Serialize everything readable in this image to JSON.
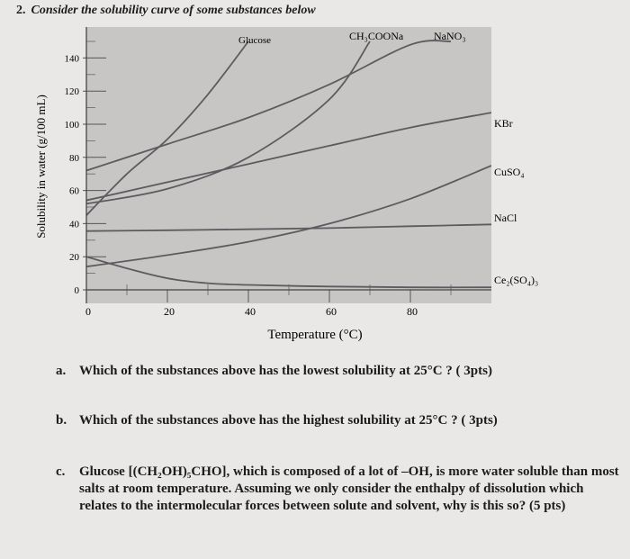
{
  "question": {
    "number": "2.",
    "title": "Consider the solubility curve of some substances below"
  },
  "chart_data": {
    "type": "line",
    "title": "",
    "xlabel": "Temperature (°C)",
    "ylabel": "Solubility in water (g/100 mL)",
    "xlim": [
      0,
      100
    ],
    "ylim": [
      0,
      150
    ],
    "xticks": [
      0,
      20,
      40,
      60,
      80
    ],
    "yticks": [
      0,
      20,
      40,
      60,
      80,
      100,
      120,
      140
    ],
    "grid": false,
    "series": [
      {
        "name": "Glucose",
        "x": [
          0,
          10,
          20,
          30,
          40
        ],
        "y": [
          45,
          70,
          91,
          118,
          150
        ]
      },
      {
        "name": "CH3COONa",
        "x": [
          0,
          20,
          40,
          60,
          70
        ],
        "y": [
          52,
          61,
          80,
          115,
          150
        ]
      },
      {
        "name": "NaNO3",
        "x": [
          0,
          20,
          40,
          60,
          80,
          90
        ],
        "y": [
          72,
          88,
          104,
          124,
          148,
          150
        ]
      },
      {
        "name": "KBr",
        "x": [
          0,
          20,
          40,
          60,
          80,
          100
        ],
        "y": [
          54,
          65,
          76,
          87,
          98,
          107
        ]
      },
      {
        "name": "CuSO4",
        "x": [
          0,
          20,
          40,
          60,
          80,
          100
        ],
        "y": [
          14,
          21,
          29,
          40,
          55,
          75
        ]
      },
      {
        "name": "NaCl",
        "x": [
          0,
          20,
          40,
          60,
          80,
          100
        ],
        "y": [
          35.5,
          36,
          36.6,
          37.3,
          38.4,
          39.5
        ]
      },
      {
        "name": "Ce2(SO4)3",
        "x": [
          0,
          10,
          20,
          30,
          40,
          60,
          80,
          100
        ],
        "y": [
          20,
          13,
          7,
          4,
          3,
          2,
          1.5,
          1.5
        ]
      }
    ],
    "labels": {
      "glucose": "Glucose",
      "ch3coona": "CH₃COONa",
      "nano3": "NaNO₃",
      "kbr": "KBr",
      "cuso4": "CuSO₄",
      "nacl": "NaCl",
      "ce2so43": "Ce₂(SO₄)₃"
    },
    "colors": {
      "background": "#c7c6c4",
      "curve": "#5c5c60"
    }
  },
  "items": [
    {
      "label": "a.",
      "text": "Which of the substances above has the lowest solubility at 25°C ? ( 3pts)"
    },
    {
      "label": "b.",
      "text": "Which of the substances above has the highest solubility at 25°C ? ( 3pts)"
    },
    {
      "label": "c.",
      "text": "Glucose [(CH₂OH)₅CHO], which is composed of a lot of –OH, is more water soluble than most salts at room temperature. Assuming we only consider the enthalpy of dissolution which relates to the intermolecular forces between solute and solvent, why is this so? (5 pts)"
    }
  ]
}
